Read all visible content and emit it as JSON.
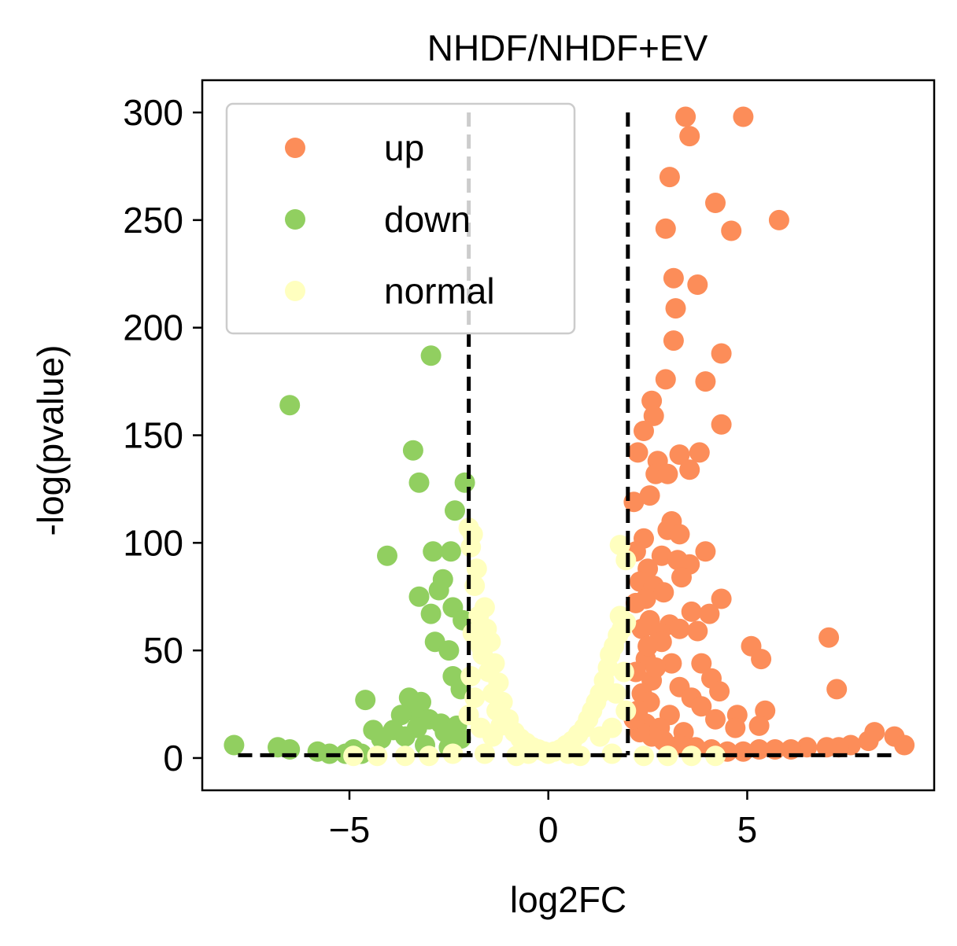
{
  "chart_data": {
    "type": "scatter",
    "title": "NHDF/NHDF+EV",
    "xlabel": "log2FC",
    "ylabel": "-log(pvalue)",
    "xlim": [
      -8.7,
      9.7
    ],
    "ylim": [
      -15,
      315
    ],
    "xticks": [
      -5,
      0,
      5
    ],
    "xtick_labels": [
      "−5",
      "0",
      "5"
    ],
    "yticks": [
      0,
      50,
      100,
      150,
      200,
      250,
      300
    ],
    "ytick_labels": [
      "0",
      "50",
      "100",
      "150",
      "200",
      "250",
      "300"
    ],
    "grid": false,
    "legend_position": "top-left",
    "thresholds": {
      "vlines": [
        -2,
        2
      ],
      "hline": 1.3,
      "hline_x_range": [
        -7.8,
        8.8
      ]
    },
    "colors": {
      "up": "#fc8d59",
      "down": "#91cf60",
      "normal": "#ffffbf",
      "threshold": "#000000"
    },
    "series": [
      {
        "name": "up",
        "color": "#fc8d59",
        "points": [
          [
            3.45,
            298
          ],
          [
            4.9,
            298
          ],
          [
            3.55,
            289
          ],
          [
            3.05,
            270
          ],
          [
            4.2,
            258
          ],
          [
            5.8,
            250
          ],
          [
            2.95,
            246
          ],
          [
            4.6,
            245
          ],
          [
            3.15,
            223
          ],
          [
            3.75,
            220
          ],
          [
            3.2,
            209
          ],
          [
            3.15,
            194
          ],
          [
            4.35,
            188
          ],
          [
            2.95,
            176
          ],
          [
            3.95,
            175
          ],
          [
            2.6,
            166
          ],
          [
            2.65,
            159
          ],
          [
            2.4,
            152
          ],
          [
            4.35,
            155
          ],
          [
            3.3,
            141
          ],
          [
            3.8,
            142
          ],
          [
            2.25,
            142
          ],
          [
            2.75,
            138
          ],
          [
            2.7,
            132
          ],
          [
            3.0,
            132
          ],
          [
            3.55,
            134
          ],
          [
            2.55,
            122
          ],
          [
            2.15,
            119
          ],
          [
            3.1,
            110
          ],
          [
            3.0,
            106
          ],
          [
            3.3,
            104
          ],
          [
            2.4,
            102
          ],
          [
            2.2,
            96
          ],
          [
            3.95,
            96
          ],
          [
            2.85,
            94
          ],
          [
            3.25,
            92
          ],
          [
            3.55,
            90
          ],
          [
            2.5,
            88
          ],
          [
            3.35,
            84
          ],
          [
            2.3,
            82
          ],
          [
            2.65,
            80
          ],
          [
            2.9,
            77
          ],
          [
            4.35,
            74
          ],
          [
            2.45,
            74
          ],
          [
            3.6,
            68
          ],
          [
            4.05,
            67
          ],
          [
            2.2,
            72
          ],
          [
            3.05,
            62
          ],
          [
            3.3,
            60
          ],
          [
            2.8,
            58
          ],
          [
            3.75,
            59
          ],
          [
            5.1,
            52
          ],
          [
            3.85,
            44
          ],
          [
            5.35,
            46
          ],
          [
            7.05,
            56
          ],
          [
            3.1,
            44
          ],
          [
            4.1,
            37
          ],
          [
            3.3,
            33
          ],
          [
            4.3,
            31
          ],
          [
            3.6,
            28
          ],
          [
            2.6,
            36
          ],
          [
            7.25,
            32
          ],
          [
            3.85,
            24
          ],
          [
            5.45,
            22
          ],
          [
            4.75,
            20
          ],
          [
            4.2,
            18
          ],
          [
            3.05,
            20
          ],
          [
            2.35,
            30
          ],
          [
            2.55,
            26
          ],
          [
            2.45,
            16
          ],
          [
            2.8,
            14
          ],
          [
            3.4,
            12
          ],
          [
            5.3,
            15
          ],
          [
            4.7,
            14
          ],
          [
            8.2,
            12
          ],
          [
            8.7,
            10
          ],
          [
            8.05,
            8
          ],
          [
            8.95,
            6
          ],
          [
            7.6,
            6
          ],
          [
            7.3,
            5
          ],
          [
            7.0,
            5
          ],
          [
            6.5,
            5
          ],
          [
            6.1,
            4
          ],
          [
            5.7,
            4
          ],
          [
            5.3,
            4
          ],
          [
            4.9,
            3
          ],
          [
            4.5,
            3
          ],
          [
            4.1,
            4
          ],
          [
            3.7,
            5
          ],
          [
            3.3,
            6
          ],
          [
            2.9,
            8
          ],
          [
            2.6,
            10
          ],
          [
            2.3,
            12
          ],
          [
            2.15,
            18
          ],
          [
            2.25,
            22
          ],
          [
            2.45,
            46
          ],
          [
            2.7,
            42
          ],
          [
            2.55,
            64
          ],
          [
            2.85,
            54
          ],
          [
            2.35,
            60
          ],
          [
            2.2,
            40
          ],
          [
            2.5,
            52
          ]
        ]
      },
      {
        "name": "down",
        "color": "#91cf60",
        "points": [
          [
            -2.95,
            187
          ],
          [
            -6.5,
            164
          ],
          [
            -3.4,
            143
          ],
          [
            -3.25,
            128
          ],
          [
            -2.1,
            128
          ],
          [
            -2.35,
            115
          ],
          [
            -2.9,
            96
          ],
          [
            -2.45,
            96
          ],
          [
            -4.05,
            94
          ],
          [
            -2.65,
            83
          ],
          [
            -2.75,
            78
          ],
          [
            -3.25,
            75
          ],
          [
            -2.4,
            70
          ],
          [
            -2.95,
            67
          ],
          [
            -2.15,
            64
          ],
          [
            -2.85,
            54
          ],
          [
            -2.5,
            50
          ],
          [
            -2.4,
            38
          ],
          [
            -2.2,
            32
          ],
          [
            -3.5,
            28
          ],
          [
            -3.2,
            26
          ],
          [
            -4.6,
            27
          ],
          [
            -3.4,
            22
          ],
          [
            -3.7,
            20
          ],
          [
            -3.0,
            18
          ],
          [
            -2.7,
            16
          ],
          [
            -3.3,
            14
          ],
          [
            -3.9,
            13
          ],
          [
            -4.4,
            13
          ],
          [
            -2.3,
            15
          ],
          [
            -2.6,
            12
          ],
          [
            -3.6,
            10
          ],
          [
            -4.2,
            9
          ],
          [
            -2.2,
            9
          ],
          [
            -7.9,
            6
          ],
          [
            -6.8,
            5
          ],
          [
            -6.5,
            4
          ],
          [
            -5.8,
            3
          ],
          [
            -5.5,
            2
          ],
          [
            -5.1,
            2
          ],
          [
            -4.7,
            2
          ],
          [
            -4.9,
            4
          ],
          [
            -3.1,
            6
          ],
          [
            -2.5,
            5
          ]
        ]
      },
      {
        "name": "normal",
        "color": "#ffffbf",
        "points": [
          [
            -2.0,
            107
          ],
          [
            -1.9,
            104
          ],
          [
            -1.95,
            98
          ],
          [
            -1.8,
            88
          ],
          [
            -1.85,
            80
          ],
          [
            -1.6,
            70
          ],
          [
            -1.75,
            66
          ],
          [
            -1.55,
            60
          ],
          [
            -1.45,
            54
          ],
          [
            -1.65,
            48
          ],
          [
            -1.35,
            44
          ],
          [
            -1.5,
            40
          ],
          [
            -1.25,
            35
          ],
          [
            -1.4,
            30
          ],
          [
            -1.15,
            26
          ],
          [
            -1.3,
            22
          ],
          [
            -1.0,
            18
          ],
          [
            -1.2,
            15
          ],
          [
            -0.85,
            12
          ],
          [
            -0.7,
            9
          ],
          [
            -0.55,
            7
          ],
          [
            -0.4,
            5
          ],
          [
            -0.25,
            4
          ],
          [
            -0.1,
            3
          ],
          [
            0.0,
            2
          ],
          [
            0.15,
            3
          ],
          [
            0.3,
            4
          ],
          [
            0.45,
            6
          ],
          [
            0.6,
            8
          ],
          [
            0.75,
            11
          ],
          [
            0.9,
            14
          ],
          [
            1.0,
            18
          ],
          [
            1.1,
            22
          ],
          [
            1.2,
            26
          ],
          [
            1.3,
            30
          ],
          [
            1.4,
            36
          ],
          [
            1.5,
            42
          ],
          [
            1.55,
            48
          ],
          [
            1.65,
            52
          ],
          [
            1.75,
            57
          ],
          [
            1.85,
            60
          ],
          [
            1.95,
            63
          ],
          [
            1.8,
            66
          ],
          [
            1.9,
            62
          ],
          [
            1.8,
            99
          ],
          [
            1.95,
            92
          ],
          [
            -1.9,
            58
          ],
          [
            -1.7,
            52
          ],
          [
            -1.95,
            38
          ],
          [
            -1.85,
            28
          ],
          [
            1.9,
            40
          ],
          [
            1.7,
            30
          ],
          [
            -2.0,
            20
          ],
          [
            1.95,
            22
          ],
          [
            -4.9,
            1
          ],
          [
            -4.3,
            1
          ],
          [
            -3.6,
            1
          ],
          [
            -3.0,
            1
          ],
          [
            -2.4,
            2
          ],
          [
            -1.6,
            2
          ],
          [
            -0.8,
            1
          ],
          [
            0.8,
            1
          ],
          [
            1.6,
            2
          ],
          [
            2.4,
            1
          ],
          [
            3.0,
            1
          ],
          [
            3.6,
            1
          ],
          [
            4.2,
            1
          ],
          [
            -1.4,
            10
          ],
          [
            -1.7,
            14
          ],
          [
            1.3,
            10
          ],
          [
            1.6,
            14
          ],
          [
            -0.5,
            2
          ],
          [
            0.5,
            2
          ]
        ]
      }
    ]
  }
}
